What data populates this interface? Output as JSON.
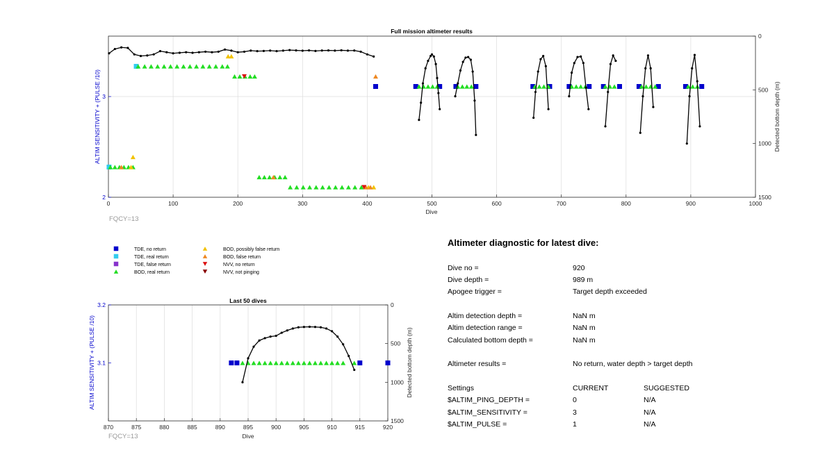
{
  "chart_data": [
    {
      "type": "scatter",
      "title": "Full mission altimeter results",
      "xlabel": "Dive",
      "ylabel_left": "ALTIM SENSITIVITY + (PULSE /10)",
      "ylabel_right": "Detected bottom depth (m)",
      "xlim": [
        0,
        1000
      ],
      "ylim_left": [
        2,
        3.6
      ],
      "ylim_right": [
        1500,
        0
      ],
      "xticks": [
        "0",
        "100",
        "200",
        "300",
        "400",
        "500",
        "600",
        "700",
        "800",
        "900",
        "1000"
      ],
      "yticks_left": [
        "2",
        "3"
      ],
      "yticks_right": [
        "0",
        "500",
        "1000",
        "1500"
      ],
      "grid": "vertical and y=3",
      "footnote": "FQCY=13",
      "bottom_depth_early": {
        "x": [
          1,
          10,
          20,
          30,
          40,
          50,
          60,
          70,
          80,
          90,
          100,
          110,
          120,
          130,
          140,
          150,
          160,
          170,
          180,
          190,
          200,
          210,
          220,
          230,
          240,
          250,
          260,
          270,
          280,
          290,
          300,
          310,
          320,
          330,
          340,
          350,
          360,
          370,
          380,
          390,
          400,
          410
        ],
        "y": [
          160,
          120,
          105,
          110,
          170,
          185,
          180,
          170,
          140,
          150,
          160,
          155,
          150,
          155,
          150,
          145,
          150,
          145,
          125,
          135,
          150,
          145,
          135,
          140,
          138,
          135,
          140,
          135,
          130,
          133,
          136,
          133,
          138,
          134,
          133,
          135,
          132,
          135,
          134,
          145,
          170,
          190
        ]
      },
      "bottom_depth_late": [
        {
          "x": [
            480,
            483,
            486,
            490,
            494,
            498,
            500,
            503,
            506,
            508,
            510,
            512
          ],
          "y": [
            780,
            620,
            440,
            300,
            230,
            185,
            170,
            190,
            260,
            390,
            530,
            680
          ]
        },
        {
          "x": [
            536,
            540,
            544,
            548,
            552,
            556,
            560,
            563,
            566,
            568
          ],
          "y": [
            560,
            440,
            320,
            240,
            200,
            195,
            220,
            330,
            600,
            920
          ]
        },
        {
          "x": [
            657,
            660,
            664,
            668,
            672,
            676,
            680
          ],
          "y": [
            760,
            520,
            330,
            215,
            185,
            280,
            680
          ]
        },
        {
          "x": [
            712,
            716,
            720,
            725,
            730,
            734,
            738,
            742
          ],
          "y": [
            560,
            340,
            250,
            195,
            190,
            250,
            480,
            680
          ]
        },
        {
          "x": [
            768,
            772,
            776,
            780,
            784
          ],
          "y": [
            840,
            520,
            260,
            180,
            230
          ]
        },
        {
          "x": [
            822,
            826,
            830,
            834,
            838,
            842
          ],
          "y": [
            900,
            560,
            300,
            180,
            300,
            660
          ]
        },
        {
          "x": [
            894,
            898,
            902,
            906,
            910,
            914
          ],
          "y": [
            1000,
            560,
            300,
            175,
            420,
            840
          ]
        }
      ],
      "series": [
        {
          "name": "TDE, no return",
          "points": [
            [
              413,
              3.1
            ],
            [
              475,
              3.1
            ],
            [
              512,
              3.1
            ],
            [
              537,
              3.1
            ],
            [
              568,
              3.1
            ],
            [
              656,
              3.1
            ],
            [
              682,
              3.1
            ],
            [
              712,
              3.1
            ],
            [
              743,
              3.1
            ],
            [
              765,
              3.1
            ],
            [
              790,
              3.1
            ],
            [
              820,
              3.1
            ],
            [
              850,
              3.1
            ],
            [
              892,
              3.1
            ],
            [
              917,
              3.1
            ]
          ]
        },
        {
          "name": "TDE, real return",
          "points": [
            [
              1,
              2.3
            ],
            [
              43,
              3.3
            ]
          ]
        },
        {
          "name": "BOD, real return",
          "points": [
            [
              3,
              2.3
            ],
            [
              10,
              2.3
            ],
            [
              17,
              2.3
            ],
            [
              24,
              2.3
            ],
            [
              31,
              2.3
            ],
            [
              38,
              2.3
            ],
            [
              46,
              3.3
            ],
            [
              56,
              3.3
            ],
            [
              66,
              3.3
            ],
            [
              76,
              3.3
            ],
            [
              86,
              3.3
            ],
            [
              96,
              3.3
            ],
            [
              106,
              3.3
            ],
            [
              116,
              3.3
            ],
            [
              126,
              3.3
            ],
            [
              136,
              3.3
            ],
            [
              146,
              3.3
            ],
            [
              156,
              3.3
            ],
            [
              166,
              3.3
            ],
            [
              176,
              3.3
            ],
            [
              184,
              3.3
            ],
            [
              195,
              3.2
            ],
            [
              203,
              3.2
            ],
            [
              211,
              3.2
            ],
            [
              219,
              3.2
            ],
            [
              226,
              3.2
            ],
            [
              233,
              2.2
            ],
            [
              241,
              2.2
            ],
            [
              249,
              2.2
            ],
            [
              257,
              2.2
            ],
            [
              265,
              2.2
            ],
            [
              273,
              2.2
            ],
            [
              281,
              2.1
            ],
            [
              291,
              2.1
            ],
            [
              301,
              2.1
            ],
            [
              311,
              2.1
            ],
            [
              321,
              2.1
            ],
            [
              331,
              2.1
            ],
            [
              341,
              2.1
            ],
            [
              351,
              2.1
            ],
            [
              361,
              2.1
            ],
            [
              371,
              2.1
            ],
            [
              381,
              2.1
            ],
            [
              391,
              2.1
            ],
            [
              480,
              3.1
            ],
            [
              487,
              3.1
            ],
            [
              494,
              3.1
            ],
            [
              501,
              3.1
            ],
            [
              508,
              3.1
            ],
            [
              540,
              3.1
            ],
            [
              547,
              3.1
            ],
            [
              554,
              3.1
            ],
            [
              561,
              3.1
            ],
            [
              659,
              3.1
            ],
            [
              666,
              3.1
            ],
            [
              673,
              3.1
            ],
            [
              680,
              3.1
            ],
            [
              716,
              3.1
            ],
            [
              723,
              3.1
            ],
            [
              730,
              3.1
            ],
            [
              737,
              3.1
            ],
            [
              768,
              3.1
            ],
            [
              775,
              3.1
            ],
            [
              782,
              3.1
            ],
            [
              824,
              3.1
            ],
            [
              831,
              3.1
            ],
            [
              838,
              3.1
            ],
            [
              845,
              3.1
            ],
            [
              896,
              3.1
            ],
            [
              903,
              3.1
            ],
            [
              910,
              3.1
            ]
          ]
        },
        {
          "name": "BOD, possibly false return",
          "points": [
            [
              35,
              2.3
            ],
            [
              38,
              2.4
            ],
            [
              185,
              3.4
            ],
            [
              190,
              3.4
            ],
            [
              402,
              2.1
            ],
            [
              410,
              2.1
            ]
          ]
        },
        {
          "name": "BOD, false return",
          "points": [
            [
              413,
              3.2
            ],
            [
              398,
              2.1
            ],
            [
              405,
              2.1
            ],
            [
              255,
              2.2
            ],
            [
              20,
              2.3
            ]
          ]
        },
        {
          "name": "NVV, no return",
          "points": [
            [
              210,
              3.2
            ],
            [
              395,
              2.1
            ]
          ]
        }
      ]
    },
    {
      "type": "scatter",
      "title": "Last 50 dives",
      "xlabel": "Dive",
      "ylabel_left": "ALTIM SENSITIVITY + (PULSE /10)",
      "ylabel_right": "Detected bottom depth (m)",
      "xlim": [
        870,
        920
      ],
      "ylim_left": [
        3,
        3.2
      ],
      "ylim_right": [
        1500,
        0
      ],
      "xticks": [
        "870",
        "875",
        "880",
        "885",
        "890",
        "895",
        "900",
        "905",
        "910",
        "915",
        "920"
      ],
      "yticks_left": [
        "3.1",
        "3.2"
      ],
      "yticks_right": [
        "0",
        "500",
        "1000",
        "1500"
      ],
      "grid": "vertical",
      "footnote": "FQCY=13",
      "bottom_depth": {
        "x": [
          894,
          895,
          896,
          897,
          898,
          899,
          900,
          901,
          902,
          903,
          904,
          905,
          906,
          907,
          908,
          909,
          910,
          911,
          912,
          913,
          914
        ],
        "y": [
          1000,
          690,
          540,
          460,
          430,
          410,
          400,
          360,
          330,
          305,
          290,
          285,
          283,
          285,
          290,
          305,
          340,
          410,
          510,
          660,
          840
        ]
      },
      "series": [
        {
          "name": "TDE, no return",
          "points": [
            [
              892,
              3.1
            ],
            [
              893,
              3.1
            ],
            [
              915,
              3.1
            ],
            [
              920,
              3.1
            ]
          ]
        },
        {
          "name": "BOD, real return",
          "points": [
            [
              894,
              3.1
            ],
            [
              895,
              3.1
            ],
            [
              896,
              3.1
            ],
            [
              897,
              3.1
            ],
            [
              898,
              3.1
            ],
            [
              899,
              3.1
            ],
            [
              900,
              3.1
            ],
            [
              901,
              3.1
            ],
            [
              902,
              3.1
            ],
            [
              903,
              3.1
            ],
            [
              904,
              3.1
            ],
            [
              905,
              3.1
            ],
            [
              906,
              3.1
            ],
            [
              907,
              3.1
            ],
            [
              908,
              3.1
            ],
            [
              909,
              3.1
            ],
            [
              910,
              3.1
            ],
            [
              911,
              3.1
            ],
            [
              912,
              3.1
            ],
            [
              914,
              3.1
            ]
          ]
        }
      ]
    }
  ],
  "legend": {
    "left": [
      {
        "label": "TDE, no return",
        "shape": "square",
        "color": "#0000cc"
      },
      {
        "label": "TDE, real return",
        "shape": "square",
        "color": "#33ccee"
      },
      {
        "label": "TDE, false return",
        "shape": "square",
        "color": "#8833cc"
      },
      {
        "label": "BOD, real return",
        "shape": "triangle-up",
        "color": "#22dd22"
      }
    ],
    "right": [
      {
        "label": "BOD, possibly false return",
        "shape": "triangle-up",
        "color": "#f2c200"
      },
      {
        "label": "BOD, false return",
        "shape": "triangle-up",
        "color": "#ee8822"
      },
      {
        "label": "NVV, no return",
        "shape": "triangle-down",
        "color": "#dd1111"
      },
      {
        "label": "NVV, not pinging",
        "shape": "triangle-down",
        "color": "#880000"
      }
    ]
  },
  "diagnostic": {
    "title": "Altimeter diagnostic for latest dive:",
    "dive_no_label": "Dive no =",
    "dive_no": "920",
    "dive_depth_label": "Dive depth =",
    "dive_depth": "989 m",
    "apogee_label": "Apogee trigger =",
    "apogee": "Target depth exceeded",
    "det_depth_label": "Altim detection depth =",
    "det_depth": "NaN m",
    "det_range_label": "Altim detection range =",
    "det_range": "NaN m",
    "calc_depth_label": "Calculated bottom depth =",
    "calc_depth": "NaN m",
    "results_label": "Altimeter results =",
    "results": "No return, water depth > target depth",
    "settings_label": "Settings",
    "current_label": "CURRENT",
    "suggested_label": "SUGGESTED",
    "ping_depth_label": "$ALTIM_PING_DEPTH =",
    "ping_depth_current": "0",
    "ping_depth_suggested": "N/A",
    "sensitivity_label": "$ALTIM_SENSITIVITY =",
    "sensitivity_current": "3",
    "sensitivity_suggested": "N/A",
    "pulse_label": "$ALTIM_PULSE =",
    "pulse_current": "1",
    "pulse_suggested": "N/A"
  },
  "colors": {
    "axis": "#262626",
    "left_axis": "#0000cc",
    "grid": "#dcdcdc",
    "depth_line": "#000000",
    "footnote": "#999999"
  }
}
